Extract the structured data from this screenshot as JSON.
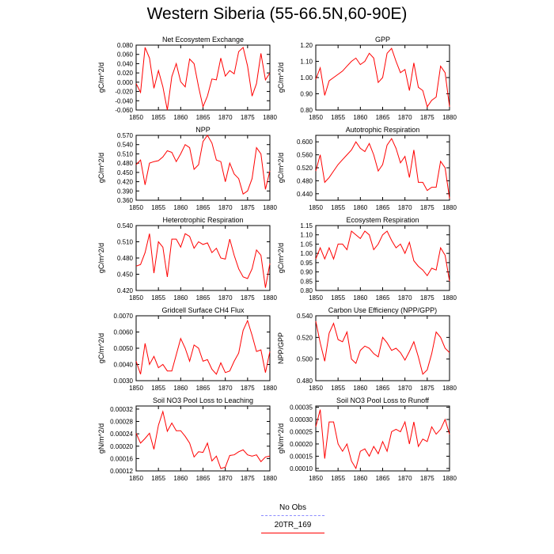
{
  "title": "Western Siberia (55-66.5N,60-90E)",
  "legend": {
    "obs_label": "No Obs",
    "obs_color": "#8c8cff",
    "model_label": "20TR_169",
    "model_color": "#ff0000"
  },
  "chart_data": [
    {
      "type": "line",
      "title": "Net Ecosystem Exchange",
      "ylabel": "gC/m^2/d",
      "xlabel": "",
      "xlim": [
        1850,
        1880
      ],
      "xticks": [
        1850,
        1855,
        1860,
        1865,
        1870,
        1875,
        1880
      ],
      "ylim": [
        -0.06,
        0.08
      ],
      "yticks": [
        "-0.060",
        "-0.040",
        "-0.020",
        "0.000",
        "0.020",
        "0.040",
        "0.060",
        "0.080"
      ],
      "series": [
        {
          "name": "20TR_169",
          "x": [
            1850,
            1851,
            1852,
            1853,
            1854,
            1855,
            1856,
            1857,
            1858,
            1859,
            1860,
            1861,
            1862,
            1863,
            1864,
            1865,
            1866,
            1867,
            1868,
            1869,
            1870,
            1871,
            1872,
            1873,
            1874,
            1875,
            1876,
            1877,
            1878,
            1879,
            1880
          ],
          "values": [
            -0.003,
            -0.022,
            0.075,
            0.052,
            -0.013,
            0.025,
            -0.01,
            -0.06,
            0.012,
            0.04,
            0.001,
            -0.01,
            0.05,
            0.04,
            -0.01,
            -0.053,
            -0.03,
            0.007,
            0.005,
            0.052,
            0.013,
            0.025,
            0.018,
            0.066,
            0.075,
            0.035,
            -0.03,
            -0.003,
            0.062,
            0.005,
            0.02
          ]
        }
      ]
    },
    {
      "type": "line",
      "title": "GPP",
      "ylabel": "gC/m^2/d",
      "xlabel": "",
      "xlim": [
        1850,
        1880
      ],
      "xticks": [
        1850,
        1855,
        1860,
        1865,
        1870,
        1875,
        1880
      ],
      "ylim": [
        0.8,
        1.2
      ],
      "yticks": [
        "0.80",
        "0.90",
        "1.00",
        "1.10",
        "1.20"
      ],
      "series": [
        {
          "name": "20TR_169",
          "x": [
            1850,
            1851,
            1852,
            1853,
            1854,
            1855,
            1856,
            1857,
            1858,
            1859,
            1860,
            1861,
            1862,
            1863,
            1864,
            1865,
            1866,
            1867,
            1868,
            1869,
            1870,
            1871,
            1872,
            1873,
            1874,
            1875,
            1876,
            1877,
            1878,
            1879,
            1880
          ],
          "values": [
            0.99,
            1.06,
            0.89,
            0.98,
            1.0,
            1.02,
            1.04,
            1.07,
            1.1,
            1.12,
            1.08,
            1.1,
            1.15,
            1.12,
            0.97,
            1.0,
            1.15,
            1.18,
            1.1,
            1.03,
            1.05,
            0.92,
            1.09,
            0.94,
            0.92,
            0.82,
            0.86,
            0.88,
            1.07,
            1.03,
            0.82
          ]
        }
      ]
    },
    {
      "type": "line",
      "title": "NPP",
      "ylabel": "gC/m^2/d",
      "xlabel": "",
      "xlim": [
        1850,
        1880
      ],
      "xticks": [
        1850,
        1855,
        1860,
        1865,
        1870,
        1875,
        1880
      ],
      "ylim": [
        0.36,
        0.57
      ],
      "yticks": [
        "0.360",
        "0.390",
        "0.420",
        "0.450",
        "0.480",
        "0.510",
        "0.540",
        "0.570"
      ],
      "series": [
        {
          "name": "20TR_169",
          "x": [
            1850,
            1851,
            1852,
            1853,
            1854,
            1855,
            1856,
            1857,
            1858,
            1859,
            1860,
            1861,
            1862,
            1863,
            1864,
            1865,
            1866,
            1867,
            1868,
            1869,
            1870,
            1871,
            1872,
            1873,
            1874,
            1875,
            1876,
            1877,
            1878,
            1879,
            1880
          ],
          "values": [
            0.475,
            0.49,
            0.41,
            0.48,
            0.485,
            0.488,
            0.5,
            0.52,
            0.515,
            0.485,
            0.51,
            0.54,
            0.53,
            0.46,
            0.475,
            0.55,
            0.57,
            0.545,
            0.49,
            0.485,
            0.42,
            0.48,
            0.445,
            0.43,
            0.38,
            0.39,
            0.43,
            0.53,
            0.51,
            0.395,
            0.455
          ]
        }
      ]
    },
    {
      "type": "line",
      "title": "Autotrophic Respiration",
      "ylabel": "gC/m^2/d",
      "xlabel": "",
      "xlim": [
        1850,
        1880
      ],
      "xticks": [
        1850,
        1855,
        1860,
        1865,
        1870,
        1875,
        1880
      ],
      "ylim": [
        0.42,
        0.62
      ],
      "yticks": [
        "0.440",
        "0.480",
        "0.520",
        "0.560",
        "0.600"
      ],
      "series": [
        {
          "name": "20TR_169",
          "x": [
            1850,
            1851,
            1852,
            1853,
            1854,
            1855,
            1856,
            1857,
            1858,
            1859,
            1860,
            1861,
            1862,
            1863,
            1864,
            1865,
            1866,
            1867,
            1868,
            1869,
            1870,
            1871,
            1872,
            1873,
            1874,
            1875,
            1876,
            1877,
            1878,
            1879,
            1880
          ],
          "values": [
            0.51,
            0.56,
            0.475,
            0.49,
            0.51,
            0.53,
            0.545,
            0.56,
            0.575,
            0.6,
            0.58,
            0.57,
            0.595,
            0.56,
            0.51,
            0.53,
            0.59,
            0.61,
            0.58,
            0.535,
            0.555,
            0.49,
            0.575,
            0.475,
            0.475,
            0.45,
            0.46,
            0.46,
            0.54,
            0.52,
            0.425
          ]
        }
      ]
    },
    {
      "type": "line",
      "title": "Heterotrophic Respiration",
      "ylabel": "gC/m^2/d",
      "xlabel": "",
      "xlim": [
        1850,
        1880
      ],
      "xticks": [
        1850,
        1855,
        1860,
        1865,
        1870,
        1875,
        1880
      ],
      "ylim": [
        0.42,
        0.54
      ],
      "yticks": [
        "0.420",
        "0.450",
        "0.480",
        "0.510",
        "0.540"
      ],
      "series": [
        {
          "name": "20TR_169",
          "x": [
            1850,
            1851,
            1852,
            1853,
            1854,
            1855,
            1856,
            1857,
            1858,
            1859,
            1860,
            1861,
            1862,
            1863,
            1864,
            1865,
            1866,
            1867,
            1868,
            1869,
            1870,
            1871,
            1872,
            1873,
            1874,
            1875,
            1876,
            1877,
            1878,
            1879,
            1880
          ],
          "values": [
            0.465,
            0.468,
            0.49,
            0.525,
            0.452,
            0.51,
            0.5,
            0.445,
            0.515,
            0.515,
            0.5,
            0.525,
            0.52,
            0.498,
            0.51,
            0.505,
            0.508,
            0.49,
            0.498,
            0.48,
            0.478,
            0.515,
            0.485,
            0.46,
            0.445,
            0.442,
            0.46,
            0.495,
            0.485,
            0.425,
            0.47
          ]
        }
      ]
    },
    {
      "type": "line",
      "title": "Ecosystem Respiration",
      "ylabel": "gC/m^2/d",
      "xlabel": "",
      "xlim": [
        1850,
        1880
      ],
      "xticks": [
        1850,
        1855,
        1860,
        1865,
        1870,
        1875,
        1880
      ],
      "ylim": [
        0.8,
        1.15
      ],
      "yticks": [
        "0.80",
        "0.85",
        "0.90",
        "0.95",
        "1.00",
        "1.05",
        "1.10",
        "1.15"
      ],
      "series": [
        {
          "name": "20TR_169",
          "x": [
            1850,
            1851,
            1852,
            1853,
            1854,
            1855,
            1856,
            1857,
            1858,
            1859,
            1860,
            1861,
            1862,
            1863,
            1864,
            1865,
            1866,
            1867,
            1868,
            1869,
            1870,
            1871,
            1872,
            1873,
            1874,
            1875,
            1876,
            1877,
            1878,
            1879,
            1880
          ],
          "values": [
            0.97,
            1.03,
            0.97,
            1.03,
            0.97,
            1.05,
            1.05,
            1.02,
            1.12,
            1.1,
            1.08,
            1.12,
            1.1,
            1.02,
            1.05,
            1.1,
            1.12,
            1.07,
            1.03,
            1.05,
            1.0,
            1.06,
            0.96,
            0.93,
            0.91,
            0.88,
            0.92,
            0.91,
            1.03,
            0.99,
            0.85
          ]
        }
      ]
    },
    {
      "type": "line",
      "title": "Gridcell Surface CH4 Flux",
      "ylabel": "gC/m^2/d",
      "xlabel": "",
      "xlim": [
        1850,
        1880
      ],
      "xticks": [
        1850,
        1855,
        1860,
        1865,
        1870,
        1875,
        1880
      ],
      "ylim": [
        0.003,
        0.007
      ],
      "yticks": [
        "0.0030",
        "0.0040",
        "0.0050",
        "0.0060",
        "0.0070"
      ],
      "series": [
        {
          "name": "20TR_169",
          "x": [
            1850,
            1851,
            1852,
            1853,
            1854,
            1855,
            1856,
            1857,
            1858,
            1859,
            1860,
            1861,
            1862,
            1863,
            1864,
            1865,
            1866,
            1867,
            1868,
            1869,
            1870,
            1871,
            1872,
            1873,
            1874,
            1875,
            1876,
            1877,
            1878,
            1879,
            1880
          ],
          "values": [
            0.0042,
            0.0034,
            0.0053,
            0.004,
            0.0045,
            0.0038,
            0.004,
            0.0036,
            0.0036,
            0.0046,
            0.0056,
            0.005,
            0.0042,
            0.0052,
            0.005,
            0.0042,
            0.0043,
            0.0037,
            0.0034,
            0.0041,
            0.0035,
            0.0036,
            0.0042,
            0.0047,
            0.0061,
            0.0067,
            0.0058,
            0.0048,
            0.0049,
            0.0035,
            0.0048
          ]
        }
      ]
    },
    {
      "type": "line",
      "title": "Carbon Use Efficiency (NPP/GPP)",
      "ylabel": "NPP/GPP",
      "xlabel": "",
      "xlim": [
        1850,
        1880
      ],
      "xticks": [
        1850,
        1855,
        1860,
        1865,
        1870,
        1875,
        1880
      ],
      "ylim": [
        0.48,
        0.54
      ],
      "yticks": [
        "0.480",
        "0.500",
        "0.520",
        "0.540"
      ],
      "series": [
        {
          "name": "20TR_169",
          "x": [
            1850,
            1851,
            1852,
            1853,
            1854,
            1855,
            1856,
            1857,
            1858,
            1859,
            1860,
            1861,
            1862,
            1863,
            1864,
            1865,
            1866,
            1867,
            1868,
            1869,
            1870,
            1871,
            1872,
            1873,
            1874,
            1875,
            1876,
            1877,
            1878,
            1879,
            1880
          ],
          "values": [
            0.535,
            0.515,
            0.498,
            0.524,
            0.533,
            0.518,
            0.516,
            0.525,
            0.5,
            0.496,
            0.508,
            0.512,
            0.51,
            0.505,
            0.502,
            0.52,
            0.515,
            0.508,
            0.51,
            0.506,
            0.499,
            0.507,
            0.516,
            0.502,
            0.486,
            0.49,
            0.505,
            0.525,
            0.52,
            0.51,
            0.506
          ]
        }
      ]
    },
    {
      "type": "line",
      "title": "Soil NO3 Pool Loss to Leaching",
      "ylabel": "gN/m^2/d",
      "xlabel": "",
      "xlim": [
        1850,
        1880
      ],
      "xticks": [
        1850,
        1855,
        1860,
        1865,
        1870,
        1875,
        1880
      ],
      "ylim": [
        0.00012,
        0.00033
      ],
      "yticks": [
        "0.00012",
        "0.00016",
        "0.00020",
        "0.00024",
        "0.00028",
        "0.00032"
      ],
      "series": [
        {
          "name": "20TR_169",
          "x": [
            1850,
            1851,
            1852,
            1853,
            1854,
            1855,
            1856,
            1857,
            1858,
            1859,
            1860,
            1861,
            1862,
            1863,
            1864,
            1865,
            1866,
            1867,
            1868,
            1869,
            1870,
            1871,
            1872,
            1873,
            1874,
            1875,
            1876,
            1877,
            1878,
            1879,
            1880
          ],
          "values": [
            0.000242,
            0.00021,
            0.000225,
            0.000242,
            0.00019,
            0.000268,
            0.000312,
            0.000248,
            0.000275,
            0.00025,
            0.00025,
            0.000232,
            0.00021,
            0.000165,
            0.000182,
            0.00018,
            0.00021,
            0.000152,
            0.000168,
            0.000128,
            0.000132,
            0.00017,
            0.000172,
            0.000182,
            0.000188,
            0.000172,
            0.000168,
            0.000172,
            0.00015,
            0.000165,
            0.000168
          ]
        }
      ]
    },
    {
      "type": "line",
      "title": "Soil NO3 Pool Loss to Runoff",
      "ylabel": "gN/m^2/d",
      "xlabel": "",
      "xlim": [
        1850,
        1880
      ],
      "xticks": [
        1850,
        1855,
        1860,
        1865,
        1870,
        1875,
        1880
      ],
      "ylim": [
        9e-05,
        0.000355
      ],
      "yticks": [
        "0.00010",
        "0.00015",
        "0.00020",
        "0.00025",
        "0.00030",
        "0.00035"
      ],
      "series": [
        {
          "name": "20TR_169",
          "x": [
            1850,
            1851,
            1852,
            1853,
            1854,
            1855,
            1856,
            1857,
            1858,
            1859,
            1860,
            1861,
            1862,
            1863,
            1864,
            1865,
            1866,
            1867,
            1868,
            1869,
            1870,
            1871,
            1872,
            1873,
            1874,
            1875,
            1876,
            1877,
            1878,
            1879,
            1880
          ],
          "values": [
            0.00027,
            0.00034,
            0.00014,
            0.00029,
            0.00029,
            0.0002,
            0.00017,
            0.0002,
            0.00013,
            0.0001,
            0.00017,
            0.00018,
            0.00015,
            0.00019,
            0.00016,
            0.00021,
            0.00017,
            0.00025,
            0.00026,
            0.00025,
            0.00029,
            0.0002,
            0.00029,
            0.00019,
            0.00022,
            0.00021,
            0.00027,
            0.00024,
            0.00026,
            0.0003,
            0.00024
          ]
        }
      ]
    }
  ]
}
